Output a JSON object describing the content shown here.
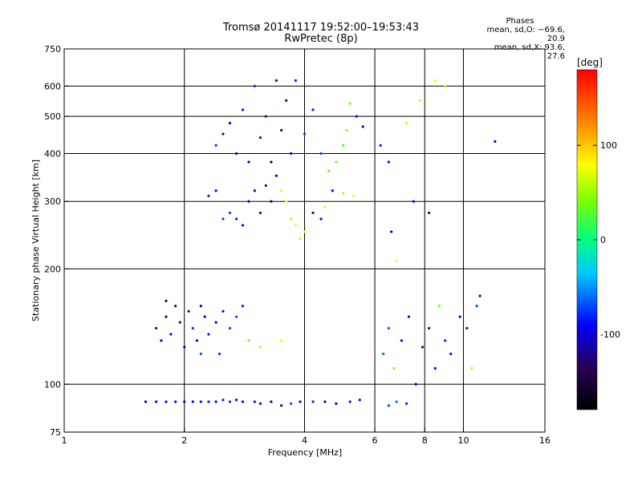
{
  "header": {
    "title_line1": "Tromsø 20141117 19:52:00–19:53:43",
    "title_line2": "RwPretec (8p)"
  },
  "phases": {
    "title": "Phases",
    "o_line": "mean, sd,O: −69.6, 20.9",
    "x_line": "mean, sd,X:  93.6, 27.6"
  },
  "chart_data": {
    "type": "scatter",
    "title": "Tromsø 20141117 19:52:00–19:53:43",
    "subtitle": "RwPretec (8p)",
    "xlabel": "Frequency [MHz]",
    "ylabel": "Stationary phase Virtual Height [km]",
    "x_scale": "log",
    "y_scale": "log",
    "xlim": [
      1,
      16
    ],
    "ylim": [
      75,
      750
    ],
    "x_ticks": [
      1,
      2,
      4,
      6,
      8,
      10,
      16
    ],
    "y_ticks": [
      75,
      100,
      200,
      300,
      400,
      500,
      600,
      750
    ],
    "x_gridlines": [
      2,
      4,
      6,
      8,
      10
    ],
    "y_gridlines": [
      100,
      200,
      300,
      400,
      500,
      600
    ],
    "grid": true,
    "colorbar": {
      "label": "[deg]",
      "range": [
        -180,
        180
      ],
      "ticks": [
        100,
        0,
        -100
      ]
    },
    "points": [
      [
        1.6,
        90,
        -100
      ],
      [
        1.7,
        90,
        -95
      ],
      [
        1.8,
        90,
        -90
      ],
      [
        1.9,
        90,
        -90
      ],
      [
        2.0,
        90,
        -95
      ],
      [
        2.1,
        90,
        -90
      ],
      [
        2.2,
        90,
        -85
      ],
      [
        2.3,
        90,
        -80
      ],
      [
        2.4,
        90,
        -90
      ],
      [
        2.5,
        91,
        -85
      ],
      [
        2.6,
        90,
        -80
      ],
      [
        2.7,
        91,
        -95
      ],
      [
        2.8,
        90,
        -90
      ],
      [
        3.0,
        90,
        -85
      ],
      [
        3.1,
        89,
        -90
      ],
      [
        3.3,
        90,
        -120
      ],
      [
        3.5,
        88,
        -110
      ],
      [
        3.7,
        89,
        -70
      ],
      [
        3.9,
        90,
        -100
      ],
      [
        4.2,
        90,
        -80
      ],
      [
        4.5,
        90,
        -95
      ],
      [
        4.8,
        89,
        -110
      ],
      [
        5.2,
        90,
        -85
      ],
      [
        5.5,
        91,
        -90
      ],
      [
        6.5,
        88,
        -70
      ],
      [
        6.8,
        90,
        -60
      ],
      [
        7.2,
        89,
        -80
      ],
      [
        1.7,
        140,
        -120
      ],
      [
        1.75,
        130,
        -110
      ],
      [
        1.8,
        150,
        -130
      ],
      [
        1.85,
        135,
        -100
      ],
      [
        1.9,
        160,
        -125
      ],
      [
        1.95,
        145,
        -115
      ],
      [
        2.0,
        125,
        -90
      ],
      [
        2.05,
        155,
        -135
      ],
      [
        2.1,
        140,
        -80
      ],
      [
        2.15,
        130,
        -95
      ],
      [
        2.2,
        160,
        -100
      ],
      [
        2.25,
        150,
        -120
      ],
      [
        2.3,
        135,
        -85
      ],
      [
        2.4,
        145,
        -90
      ],
      [
        2.45,
        120,
        -80
      ],
      [
        2.5,
        155,
        -95
      ],
      [
        2.6,
        140,
        -75
      ],
      [
        2.7,
        150,
        -70
      ],
      [
        2.8,
        160,
        -85
      ],
      [
        2.9,
        130,
        40
      ],
      [
        3.1,
        125,
        60
      ],
      [
        3.5,
        130,
        70
      ],
      [
        1.8,
        165,
        -125
      ],
      [
        2.2,
        120,
        -70
      ],
      [
        2.3,
        310,
        -80
      ],
      [
        2.4,
        320,
        -90
      ],
      [
        2.5,
        270,
        -70
      ],
      [
        2.6,
        280,
        -75
      ],
      [
        2.7,
        270,
        -85
      ],
      [
        2.8,
        260,
        -95
      ],
      [
        2.9,
        300,
        -100
      ],
      [
        3.0,
        320,
        -110
      ],
      [
        3.1,
        280,
        -120
      ],
      [
        3.2,
        330,
        -130
      ],
      [
        3.3,
        300,
        -140
      ],
      [
        3.4,
        350,
        -125
      ],
      [
        3.5,
        320,
        70
      ],
      [
        3.6,
        300,
        80
      ],
      [
        3.7,
        270,
        90
      ],
      [
        3.8,
        260,
        75
      ],
      [
        3.9,
        240,
        65
      ],
      [
        4.0,
        250,
        80
      ],
      [
        4.2,
        280,
        -110
      ],
      [
        4.4,
        270,
        -100
      ],
      [
        4.5,
        290,
        85
      ],
      [
        4.7,
        320,
        -90
      ],
      [
        5.0,
        315,
        60
      ],
      [
        5.3,
        310,
        75
      ],
      [
        2.4,
        420,
        -80
      ],
      [
        2.5,
        450,
        -90
      ],
      [
        2.6,
        480,
        -100
      ],
      [
        2.7,
        400,
        -110
      ],
      [
        2.8,
        520,
        -85
      ],
      [
        2.9,
        380,
        -95
      ],
      [
        3.0,
        600,
        -80
      ],
      [
        3.1,
        440,
        -120
      ],
      [
        3.2,
        500,
        -130
      ],
      [
        3.3,
        380,
        -135
      ],
      [
        3.4,
        620,
        -110
      ],
      [
        3.5,
        460,
        -125
      ],
      [
        3.6,
        550,
        -115
      ],
      [
        3.7,
        400,
        -100
      ],
      [
        3.8,
        620,
        -80
      ],
      [
        4.0,
        450,
        -75
      ],
      [
        4.2,
        520,
        -85
      ],
      [
        4.4,
        400,
        -70
      ],
      [
        4.6,
        360,
        35
      ],
      [
        4.8,
        380,
        30
      ],
      [
        5.0,
        420,
        25
      ],
      [
        5.1,
        460,
        45
      ],
      [
        5.2,
        540,
        40
      ],
      [
        5.4,
        500,
        -110
      ],
      [
        5.6,
        470,
        -115
      ],
      [
        6.2,
        420,
        -80
      ],
      [
        6.5,
        380,
        -90
      ],
      [
        7.2,
        480,
        60
      ],
      [
        7.8,
        550,
        70
      ],
      [
        8.5,
        620,
        80
      ],
      [
        9.0,
        600,
        55
      ],
      [
        12.0,
        430,
        -100
      ],
      [
        6.3,
        120,
        -60
      ],
      [
        6.5,
        140,
        -70
      ],
      [
        6.7,
        110,
        50
      ],
      [
        7.0,
        130,
        -90
      ],
      [
        7.3,
        150,
        -100
      ],
      [
        7.6,
        100,
        -110
      ],
      [
        7.9,
        125,
        -120
      ],
      [
        8.2,
        140,
        -115
      ],
      [
        8.5,
        110,
        -90
      ],
      [
        8.7,
        160,
        30
      ],
      [
        9.0,
        130,
        -80
      ],
      [
        9.3,
        120,
        -95
      ],
      [
        9.8,
        150,
        -100
      ],
      [
        10.2,
        140,
        -110
      ],
      [
        10.5,
        110,
        60
      ],
      [
        10.8,
        160,
        -70
      ],
      [
        11.0,
        170,
        -120
      ],
      [
        6.6,
        250,
        -100
      ],
      [
        6.8,
        210,
        70
      ],
      [
        7.5,
        300,
        -90
      ],
      [
        8.2,
        280,
        -110
      ]
    ]
  }
}
